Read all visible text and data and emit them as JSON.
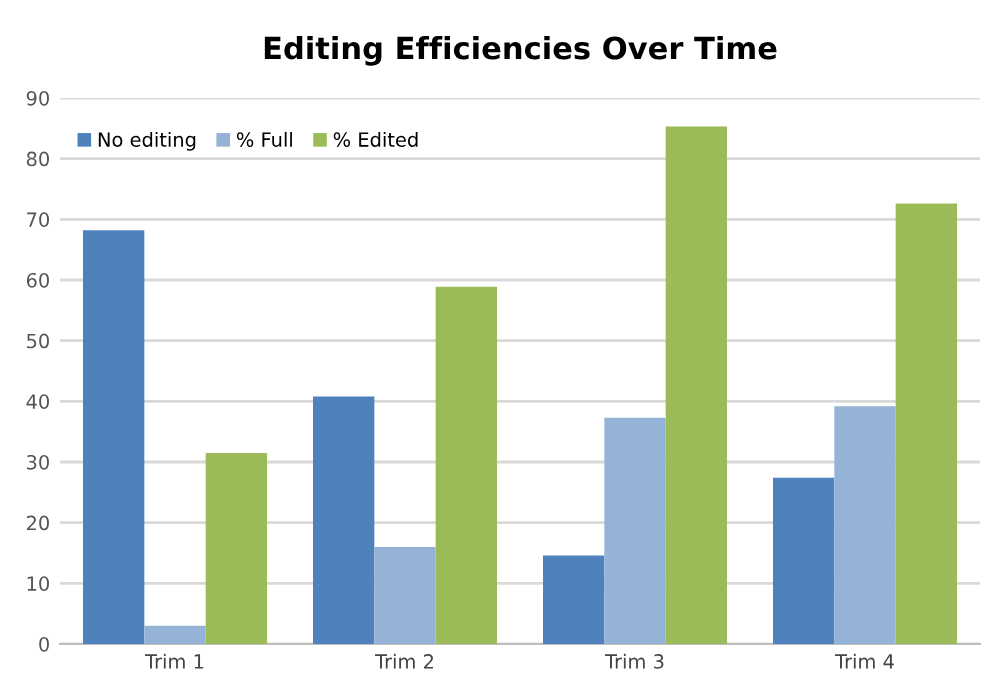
{
  "chart_data": {
    "type": "bar",
    "title": "Editing Efficiencies Over Time",
    "categories": [
      "Trim 1",
      "Trim 2",
      "Trim 3",
      "Trim 4"
    ],
    "series": [
      {
        "name": "No editing",
        "color": "#4f81bd",
        "values": [
          68.2,
          40.8,
          14.6,
          27.4
        ]
      },
      {
        "name": "% Full",
        "color": "#95b3d7",
        "values": [
          3,
          16,
          37.3,
          39.2
        ]
      },
      {
        "name": "% Edited",
        "color": "#9bbb59",
        "values": [
          31.5,
          58.9,
          85.3,
          72.6
        ]
      }
    ],
    "ylim": [
      0,
      90
    ],
    "yticks": [
      0,
      10,
      20,
      30,
      40,
      50,
      60,
      70,
      80,
      90
    ],
    "grid": "y",
    "legend": "top left"
  }
}
